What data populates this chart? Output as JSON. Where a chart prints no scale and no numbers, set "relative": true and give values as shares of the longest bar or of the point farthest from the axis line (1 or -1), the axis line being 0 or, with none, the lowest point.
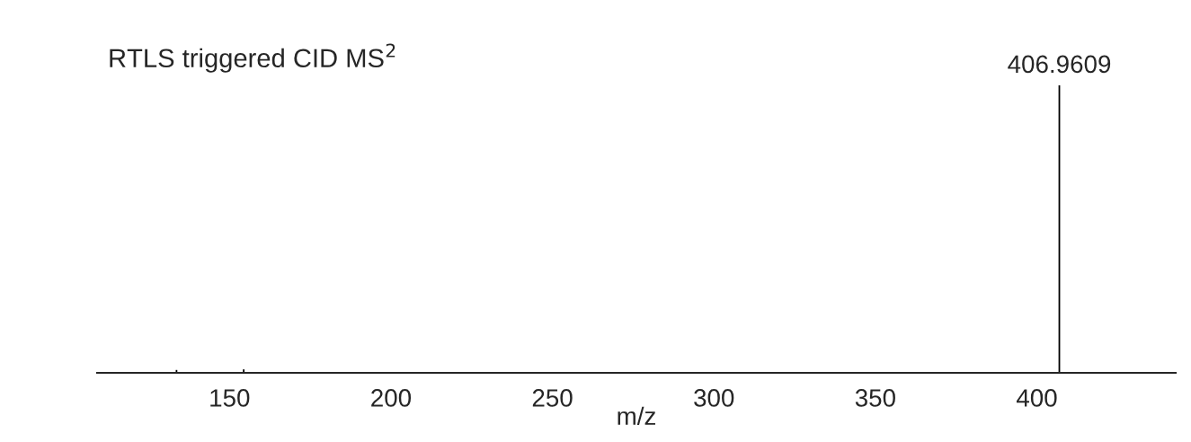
{
  "chart_data": {
    "type": "bar",
    "title": "RTLS triggered CID MS$^{2}$",
    "xlabel": "m/z",
    "x": [
      133.6,
      154.4,
      406.9609
    ],
    "values": [
      0.01,
      0.012,
      1
    ],
    "color": "#000000",
    "relative": true,
    "xlim": [
      109,
      443
    ],
    "xticks": [
      150,
      200,
      250,
      300,
      350,
      400
    ],
    "annotations": [
      {
        "text": "406.9609",
        "x": 406.9609,
        "y": 1
      }
    ],
    "grid": false,
    "legend": false
  }
}
